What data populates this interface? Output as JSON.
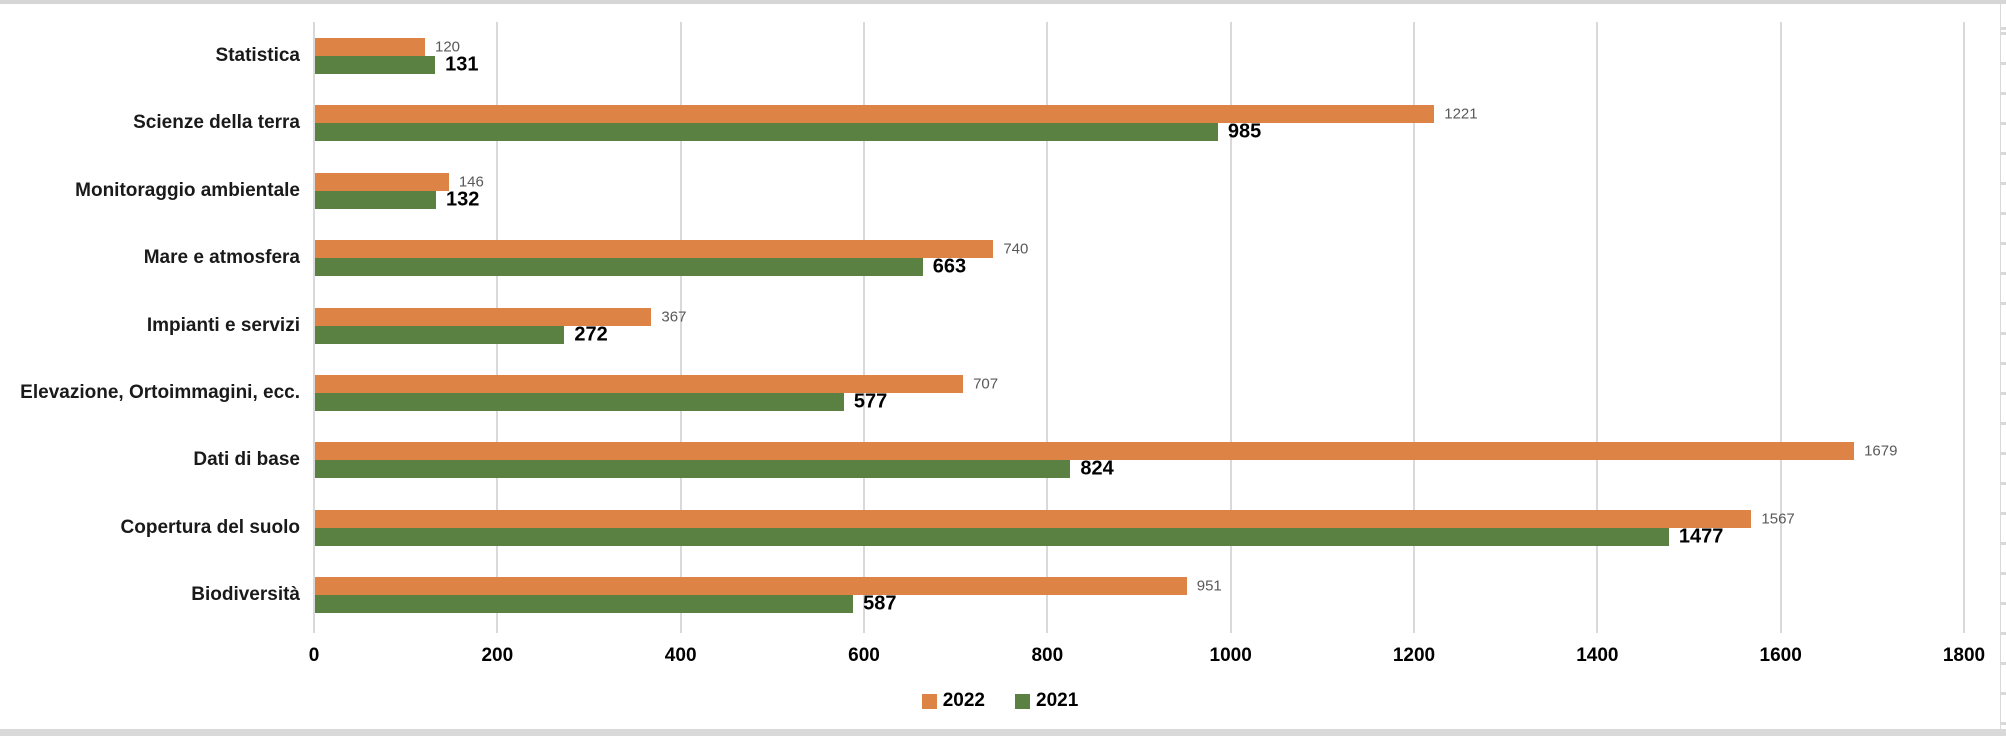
{
  "chart_data": {
    "type": "bar",
    "orientation": "horizontal",
    "title": "",
    "xlabel": "",
    "ylabel": "",
    "grid": true,
    "legend_position": "bottom-center",
    "categories": [
      "Statistica",
      "Scienze della terra",
      "Monitoraggio ambientale",
      "Mare e atmosfera",
      "Impianti e servizi",
      "Elevazione, Ortoimmagini, ecc.",
      "Dati di base",
      "Copertura del suolo",
      "Biodiversità"
    ],
    "series": [
      {
        "name": "2022",
        "color": "#DD8346",
        "values": [
          120,
          1221,
          146,
          740,
          367,
          707,
          1679,
          1567,
          951
        ],
        "data_label_color": "#595959",
        "data_label_weight": "regular"
      },
      {
        "name": "2021",
        "color": "#5B8142",
        "values": [
          131,
          985,
          132,
          663,
          272,
          577,
          824,
          1477,
          587
        ],
        "data_label_color": "#000000",
        "data_label_weight": "bold"
      }
    ],
    "x_axis": {
      "min": 0,
      "max": 1800,
      "tick_step": 200,
      "tick_labels": [
        "0",
        "200",
        "400",
        "600",
        "800",
        "1000",
        "1200",
        "1400",
        "1600",
        "1800"
      ]
    },
    "colors": {
      "gridline": "#D9D9D9",
      "background": "#FFFFFF",
      "frame_edge": "#D6D6D6"
    }
  }
}
